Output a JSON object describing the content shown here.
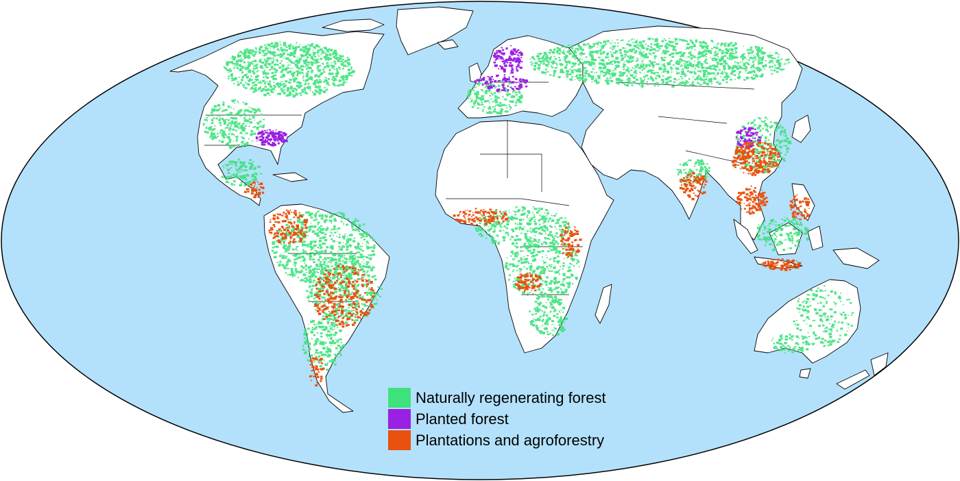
{
  "map": {
    "projection": "Mollweide",
    "ocean_color": "#b3e1fb",
    "land_color": "#ffffff",
    "border_color": "#000000"
  },
  "legend": {
    "items": [
      {
        "label": "Naturally regenerating forest",
        "color": "#3ee27c"
      },
      {
        "label": "Planted forest",
        "color": "#9a20e2"
      },
      {
        "label": "Plantations and agroforestry",
        "color": "#e8520e"
      }
    ]
  }
}
